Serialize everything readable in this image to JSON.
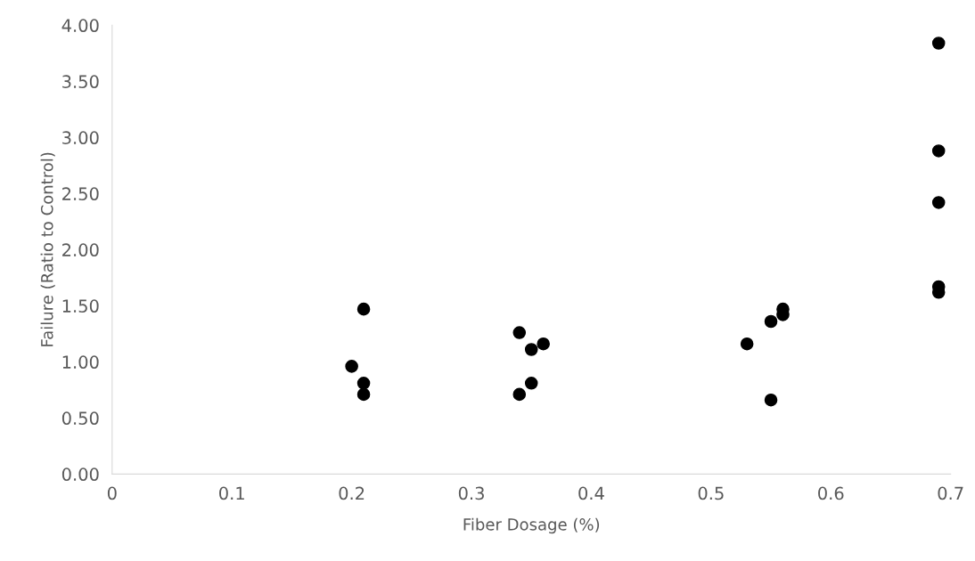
{
  "chart_data": {
    "type": "scatter",
    "xlabel": "Fiber Dosage (%)",
    "ylabel": "Failure (Ratio to Control)",
    "x": [
      0.2,
      0.21,
      0.21,
      0.21,
      0.34,
      0.35,
      0.36,
      0.35,
      0.34,
      0.53,
      0.55,
      0.56,
      0.56,
      0.55,
      0.69,
      0.69,
      0.69,
      0.69,
      0.69
    ],
    "series": [
      {
        "color": "#000000",
        "values": [
          0.96,
          1.47,
          0.81,
          0.71,
          1.26,
          1.11,
          1.16,
          0.81,
          0.71,
          1.16,
          1.36,
          1.47,
          1.42,
          0.66,
          3.84,
          2.88,
          2.42,
          1.67,
          1.62
        ]
      }
    ],
    "xlim": [
      0,
      0.7
    ],
    "xticks": [
      0,
      0.1,
      0.2,
      0.3,
      0.4,
      0.5,
      0.6,
      0.7
    ],
    "ylim": [
      0,
      4
    ],
    "yticks": [
      {
        "value": 0,
        "label": "0.00"
      },
      {
        "value": 0.5,
        "label": "0.50"
      },
      {
        "value": 1,
        "label": "1.00"
      },
      {
        "value": 1.5,
        "label": "1.50"
      },
      {
        "value": 2,
        "label": "2.00"
      },
      {
        "value": 2.5,
        "label": "2.50"
      },
      {
        "value": 3,
        "label": "3.00"
      },
      {
        "value": 3.5,
        "label": "3.50"
      },
      {
        "value": 4,
        "label": "4.00"
      }
    ],
    "marker": "circle",
    "grid": false,
    "legend": false
  }
}
